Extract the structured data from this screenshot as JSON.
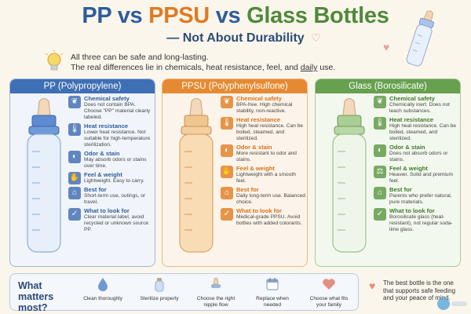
{
  "title": {
    "pp": "PP",
    "vs1": "vs",
    "ppsu": "PPSU",
    "vs2": "vs",
    "glass": "Glass Bottles"
  },
  "subtitle": "— Not About Durability",
  "intro": {
    "line1": "All three can be safe and long-lasting.",
    "line2_pre": "The real differences lie in chemicals, heat resistance, feel, and ",
    "line2_u": "daily",
    "line2_post": " use."
  },
  "panels": [
    {
      "header": "PP (Polypropylene)",
      "color": "#3f6fb4",
      "features": [
        {
          "icon": "leaf-icon",
          "glyph": "❦",
          "title": "Chemical safety",
          "desc": "Does not contain BPA. Choose \"PP\" material clearly labeled."
        },
        {
          "icon": "thermometer-icon",
          "glyph": "🌡",
          "title": "Heat resistance",
          "desc": "Lower heat resistance. Not suitable for high-temperature sterilization."
        },
        {
          "icon": "nose-icon",
          "glyph": "◐",
          "title": "Odor & stain",
          "desc": "May absorb odors or stains over time."
        },
        {
          "icon": "hand-icon",
          "glyph": "✋",
          "title": "Feel & weight",
          "desc": "Lightweight. Easy to carry."
        },
        {
          "icon": "home-icon",
          "glyph": "⌂",
          "title": "Best for",
          "desc": "Short-term use, outings, or travel."
        },
        {
          "icon": "check-icon",
          "glyph": "✓",
          "title": "What to look for",
          "desc": "Clear material label, avoid recycled or unknown source PP."
        }
      ]
    },
    {
      "header": "PPSU (Polyphenylsulfone)",
      "color": "#e58a32",
      "features": [
        {
          "icon": "leaf-icon",
          "glyph": "❦",
          "title": "Chemical safety",
          "desc": "BPA-free. High chemical stability, non-reactive."
        },
        {
          "icon": "thermometer-icon",
          "glyph": "🌡",
          "title": "Heat resistance",
          "desc": "High heat resistance. Can be boiled, steamed, and sterilized."
        },
        {
          "icon": "nose-icon",
          "glyph": "◐",
          "title": "Odor & stain",
          "desc": "More resistant to odor and stains."
        },
        {
          "icon": "hand-icon",
          "glyph": "✋",
          "title": "Feel & weight",
          "desc": "Lightweight with a smooth feel."
        },
        {
          "icon": "home-icon",
          "glyph": "⌂",
          "title": "Best for",
          "desc": "Daily long-term use. Balanced choice."
        },
        {
          "icon": "check-icon",
          "glyph": "✓",
          "title": "What to look for",
          "desc": "Medical-grade PPSU. Avoid bottles with added colorants."
        }
      ]
    },
    {
      "header": "Glass (Borosilicate)",
      "color": "#67a04f",
      "features": [
        {
          "icon": "leaf-icon",
          "glyph": "❦",
          "title": "Chemical safety",
          "desc": "Chemically inert. Does not leach substances."
        },
        {
          "icon": "thermometer-icon",
          "glyph": "🌡",
          "title": "Heat resistance",
          "desc": "High heat resistance. Can be boiled, steamed, and sterilized."
        },
        {
          "icon": "nose-icon",
          "glyph": "◐",
          "title": "Odor & stain",
          "desc": "Does not absorb odors or stains."
        },
        {
          "icon": "weight-icon",
          "glyph": "⚖",
          "title": "Feel & weight",
          "desc": "Heavier. Solid and premium feel."
        },
        {
          "icon": "home-icon",
          "glyph": "⌂",
          "title": "Best for",
          "desc": "Parents who prefer natural, pure materials."
        },
        {
          "icon": "check-icon",
          "glyph": "✓",
          "title": "What to look for",
          "desc": "Borosilicate glass (heat-resistant), not regular soda-lime glass."
        }
      ]
    }
  ],
  "bottom": {
    "question": "What matters most?",
    "items": [
      {
        "icon": "water-drop-icon",
        "label": "Clean thoroughly",
        "color": "#6f9ad0"
      },
      {
        "icon": "bottle-icon",
        "label": "Sterilize properly",
        "color": "#8fb0d8"
      },
      {
        "icon": "nipple-icon",
        "label": "Choose the right nipple flow",
        "color": "#9db7d6"
      },
      {
        "icon": "calendar-icon",
        "label": "Replace when needed",
        "color": "#8ea6c4"
      },
      {
        "icon": "heart-icon",
        "label": "Choose what fits your family",
        "color": "#e38f82"
      }
    ]
  },
  "tip": "The best bottle is the one that supports safe feeding and your peace of mind."
}
